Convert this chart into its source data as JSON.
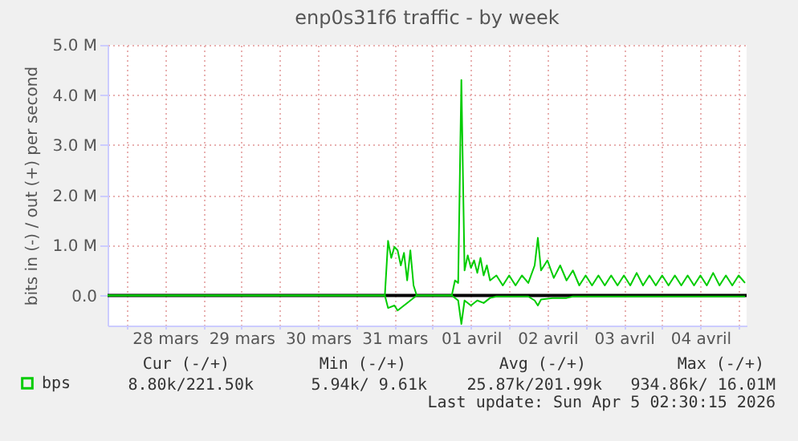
{
  "chart_data": {
    "type": "line",
    "title": "enp0s31f6 traffic - by week",
    "ylabel": "bits in (-) / out (+) per second",
    "xlim": [
      "2026-03-27T18:00",
      "2026-04-05T02:30"
    ],
    "xticks": [
      {
        "value": "2026-03-28T00:00",
        "label": null
      },
      {
        "value": "2026-03-28T12:00",
        "label": "28 mars"
      },
      {
        "value": "2026-03-29T00:00",
        "label": null
      },
      {
        "value": "2026-03-29T12:00",
        "label": "29 mars"
      },
      {
        "value": "2026-03-30T00:00",
        "label": null
      },
      {
        "value": "2026-03-30T12:00",
        "label": "30 mars"
      },
      {
        "value": "2026-03-31T00:00",
        "label": null
      },
      {
        "value": "2026-03-31T12:00",
        "label": "31 mars"
      },
      {
        "value": "2026-04-01T00:00",
        "label": null
      },
      {
        "value": "2026-04-01T12:00",
        "label": "01 avril"
      },
      {
        "value": "2026-04-02T00:00",
        "label": null
      },
      {
        "value": "2026-04-02T12:00",
        "label": "02 avril"
      },
      {
        "value": "2026-04-03T00:00",
        "label": null
      },
      {
        "value": "2026-04-03T12:00",
        "label": "03 avril"
      },
      {
        "value": "2026-04-04T00:00",
        "label": null
      },
      {
        "value": "2026-04-04T12:00",
        "label": "04 avril"
      },
      {
        "value": "2026-04-05T00:00",
        "label": null
      }
    ],
    "ylim": [
      -600000,
      5000000
    ],
    "yticks": [
      {
        "value": 0,
        "label": "0.0"
      },
      {
        "value": 1000000,
        "label": "1.0 M"
      },
      {
        "value": 2000000,
        "label": "2.0 M"
      },
      {
        "value": 3000000,
        "label": "3.0 M"
      },
      {
        "value": 4000000,
        "label": "4.0 M"
      },
      {
        "value": 5000000,
        "label": "5.0 M"
      }
    ],
    "grid": true,
    "legend": "bottom left",
    "marker": "none",
    "line_style": "solid",
    "ref_lines": [
      {
        "axis": "y",
        "value": 0,
        "label": null,
        "color": "#000000"
      }
    ],
    "series": [
      {
        "name": "bps",
        "color": "#00cc00",
        "x": [
          "2026-03-27T18:00",
          "2026-03-28T12:00",
          "2026-03-29T12:00",
          "2026-03-30T12:00",
          "2026-03-31T09:00",
          "2026-03-31T10:00",
          "2026-03-31T11:00",
          "2026-03-31T12:00",
          "2026-03-31T13:00",
          "2026-03-31T14:00",
          "2026-03-31T15:00",
          "2026-03-31T16:00",
          "2026-03-31T17:00",
          "2026-03-31T18:00",
          "2026-03-31T19:00",
          "2026-04-01T06:00",
          "2026-04-01T07:00",
          "2026-04-01T08:00",
          "2026-04-01T09:00",
          "2026-04-01T10:00",
          "2026-04-01T11:00",
          "2026-04-01T12:00",
          "2026-04-01T13:00",
          "2026-04-01T14:00",
          "2026-04-01T15:00",
          "2026-04-01T16:00",
          "2026-04-01T17:00",
          "2026-04-01T18:00",
          "2026-04-01T20:00",
          "2026-04-01T22:00",
          "2026-04-02T00:00",
          "2026-04-02T02:00",
          "2026-04-02T04:00",
          "2026-04-02T06:00",
          "2026-04-02T08:00",
          "2026-04-02T09:00",
          "2026-04-02T10:00",
          "2026-04-02T12:00",
          "2026-04-02T14:00",
          "2026-04-02T16:00",
          "2026-04-02T18:00",
          "2026-04-02T20:00",
          "2026-04-02T22:00",
          "2026-04-03T00:00",
          "2026-04-03T02:00",
          "2026-04-03T04:00",
          "2026-04-03T06:00",
          "2026-04-03T08:00",
          "2026-04-03T10:00",
          "2026-04-03T12:00",
          "2026-04-03T14:00",
          "2026-04-03T16:00",
          "2026-04-03T18:00",
          "2026-04-03T20:00",
          "2026-04-03T22:00",
          "2026-04-04T00:00",
          "2026-04-04T02:00",
          "2026-04-04T04:00",
          "2026-04-04T06:00",
          "2026-04-04T08:00",
          "2026-04-04T10:00",
          "2026-04-04T12:00",
          "2026-04-04T14:00",
          "2026-04-04T16:00",
          "2026-04-04T18:00",
          "2026-04-04T20:00",
          "2026-04-04T22:00",
          "2026-04-05T00:00",
          "2026-04-05T02:00"
        ],
        "values": [
          0,
          0,
          0,
          0,
          0,
          1090000,
          750000,
          970000,
          900000,
          600000,
          850000,
          300000,
          900000,
          200000,
          0,
          0,
          300000,
          250000,
          4300000,
          500000,
          800000,
          550000,
          700000,
          450000,
          750000,
          400000,
          600000,
          300000,
          400000,
          200000,
          400000,
          200000,
          400000,
          250000,
          600000,
          1150000,
          500000,
          700000,
          350000,
          600000,
          300000,
          500000,
          200000,
          400000,
          200000,
          400000,
          200000,
          400000,
          200000,
          400000,
          200000,
          450000,
          200000,
          400000,
          200000,
          400000,
          200000,
          400000,
          200000,
          400000,
          200000,
          400000,
          200000,
          450000,
          200000,
          400000,
          200000,
          400000,
          250000
        ]
      },
      {
        "color": "#00cc00",
        "x": [
          "2026-03-27T18:00",
          "2026-03-31T09:00",
          "2026-03-31T10:00",
          "2026-03-31T12:00",
          "2026-03-31T13:00",
          "2026-03-31T15:00",
          "2026-03-31T17:00",
          "2026-03-31T19:00",
          "2026-04-01T06:00",
          "2026-04-01T08:00",
          "2026-04-01T09:00",
          "2026-04-01T10:00",
          "2026-04-01T12:00",
          "2026-04-01T14:00",
          "2026-04-01T16:00",
          "2026-04-01T18:00",
          "2026-04-01T20:00",
          "2026-04-02T06:00",
          "2026-04-02T08:00",
          "2026-04-02T09:00",
          "2026-04-02T10:00",
          "2026-04-02T14:00",
          "2026-04-02T18:00",
          "2026-04-02T20:00",
          "2026-04-05T02:00"
        ],
        "values": [
          0,
          0,
          -250000,
          -200000,
          -300000,
          -200000,
          -100000,
          0,
          0,
          -100000,
          -570000,
          -100000,
          -200000,
          -100000,
          -150000,
          -50000,
          -20000,
          -20000,
          -100000,
          -200000,
          -80000,
          -50000,
          -50000,
          -20000,
          -20000
        ]
      }
    ],
    "annotations": [
      "Cur (-/+)",
      "Min (-/+)",
      "Avg (-/+)",
      "Max (-/+)",
      "8.80k/221.50k",
      "5.94k/  9.61k",
      "25.87k/201.99k",
      "934.86k/ 16.01M",
      "Last update: Sun Apr  5 02:30:15 2026"
    ]
  }
}
